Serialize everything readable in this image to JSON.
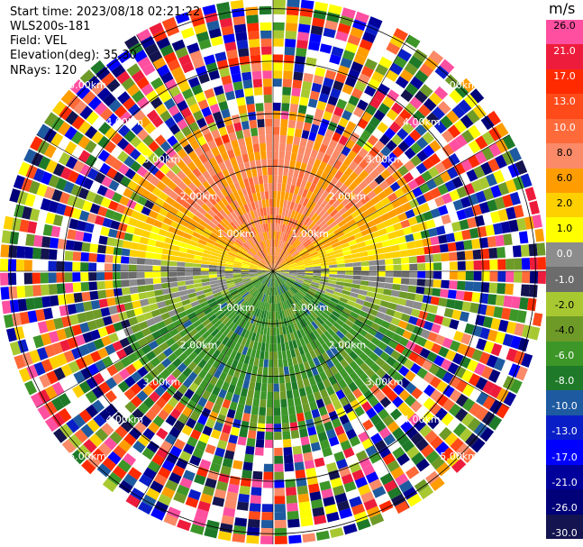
{
  "info": {
    "start_time": "Start time: 2023/08/18 02:21:22",
    "instrument": "WLS200s-181",
    "field": "Field: VEL",
    "elevation": "Elevation(deg): 35.30",
    "nrays": "NRays: 120"
  },
  "colorbar": {
    "units": "m/s",
    "labels": [
      "26.0",
      "21.0",
      "17.0",
      "13.0",
      "10.0",
      "8.0",
      "6.0",
      "2.0",
      "1.0",
      "0.0",
      "-1.0",
      "-2.0",
      "-4.0",
      "-6.0",
      "-8.0",
      "-10.0",
      "-13.0",
      "-17.0",
      "-21.0",
      "-26.0",
      "-30.0"
    ],
    "colors": [
      "#ff4fa0",
      "#ee1c3c",
      "#ff2a00",
      "#ff4a1a",
      "#ff6a3a",
      "#fa8a68",
      "#ff9d00",
      "#ffd000",
      "#ffff00",
      "#8c8c8c",
      "#6c6c6c",
      "#a8c832",
      "#6e9a28",
      "#3c9628",
      "#1e7a28",
      "#1e5aa0",
      "#0a1ec8",
      "#0000ff",
      "#00009a",
      "#000078",
      "#141450"
    ]
  },
  "chart_data": {
    "type": "ppi",
    "field": "VEL",
    "units": "m/s",
    "range_rings_km": [
      "1.00km",
      "2.00km",
      "3.00km",
      "4.00km",
      "5.00km"
    ],
    "n_rays": 120,
    "vmin": -30.0,
    "vmax": 26.0,
    "pattern": "positive (toward orange/pink) velocities in northern half, negative (green) velocities in southern half, noise beyond ~3 km",
    "ring_label_azimuths_deg": [
      45,
      135,
      225,
      315
    ]
  }
}
